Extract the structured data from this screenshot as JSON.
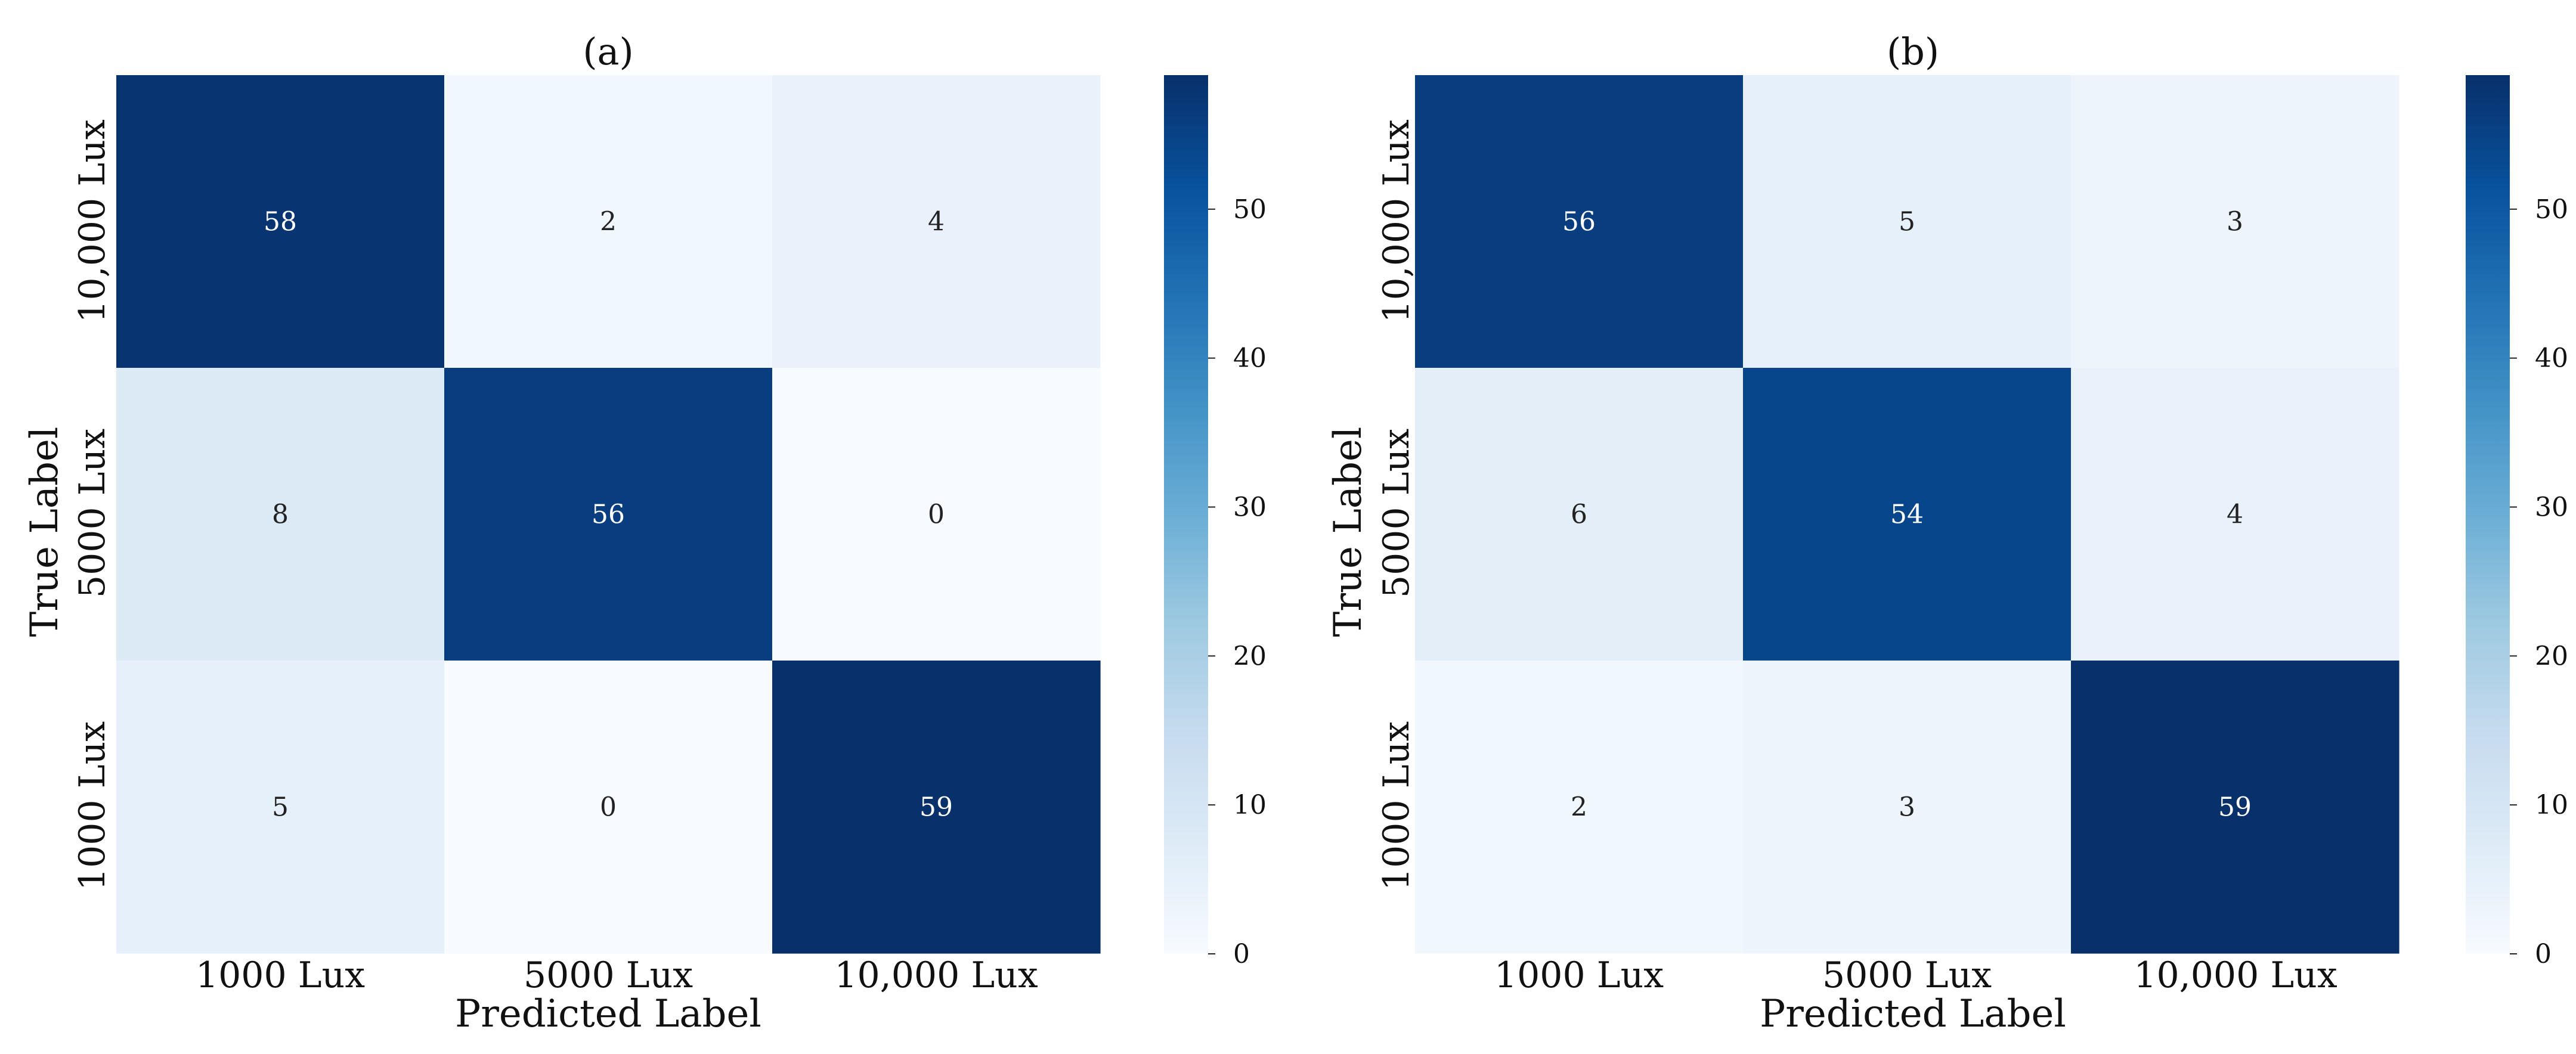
{
  "chart_data": [
    {
      "type": "heatmap",
      "title": "(a)",
      "xlabel": "Predicted Label",
      "ylabel": "True Label",
      "x_categories": [
        "1000 Lux",
        "5000 Lux",
        "10,000 Lux"
      ],
      "y_categories": [
        "10,000 Lux",
        "5000 Lux",
        "1000 Lux"
      ],
      "values": [
        [
          58,
          2,
          4
        ],
        [
          8,
          56,
          0
        ],
        [
          5,
          0,
          59
        ]
      ],
      "colorbar": {
        "ticks": [
          "0",
          "10",
          "20",
          "30",
          "40",
          "50"
        ],
        "range": [
          0,
          59
        ],
        "cmap": "Blues"
      }
    },
    {
      "type": "heatmap",
      "title": "(b)",
      "xlabel": "Predicted Label",
      "ylabel": "True Label",
      "x_categories": [
        "1000 Lux",
        "5000 Lux",
        "10,000 Lux"
      ],
      "y_categories": [
        "10,000 Lux",
        "5000 Lux",
        "1000 Lux"
      ],
      "values": [
        [
          56,
          5,
          3
        ],
        [
          6,
          54,
          4
        ],
        [
          2,
          3,
          59
        ]
      ],
      "colorbar": {
        "ticks": [
          "0",
          "10",
          "20",
          "30",
          "40",
          "50"
        ],
        "range": [
          0,
          59
        ],
        "cmap": "Blues"
      }
    }
  ],
  "colors": {
    "cmap_stops": [
      "#f7fbff",
      "#deebf7",
      "#c6dbef",
      "#9ecae1",
      "#6baed6",
      "#4292c6",
      "#2171b5",
      "#08519c",
      "#08306b"
    ],
    "text_light": "#ffffff",
    "text_dark": "#222222"
  }
}
